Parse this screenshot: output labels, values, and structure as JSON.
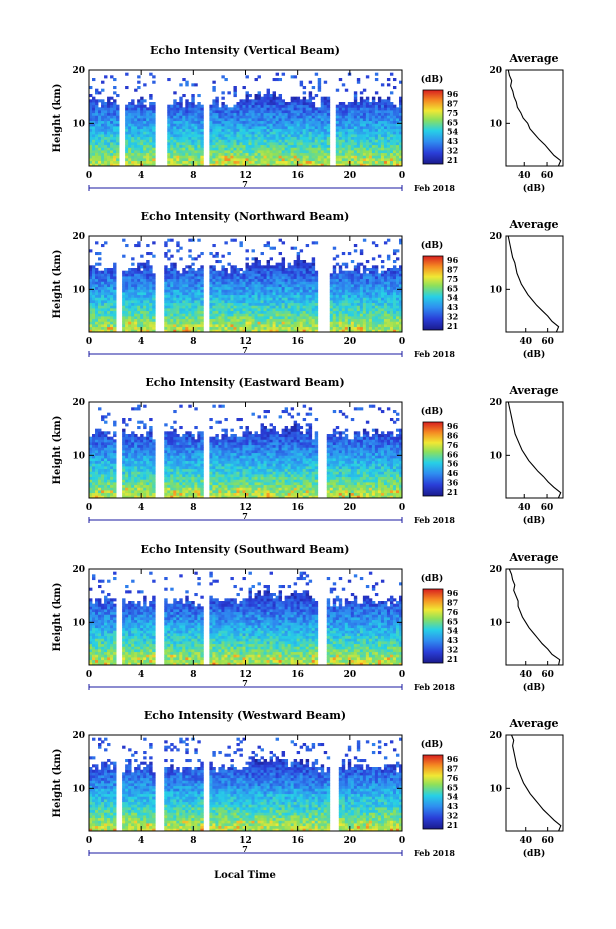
{
  "figure": {
    "xlabel": "Local Time",
    "date_label": "Feb 2018",
    "day_marker": "7",
    "colorbar_unit": "(dB)",
    "avg_title": "Average",
    "avg_xlabel": "(dB)",
    "ylabel": "Height (km)"
  },
  "chart_data": [
    {
      "type": "heatmap",
      "title": "Echo Intensity (Vertical Beam)",
      "x_ticks": [
        "0",
        "4",
        "8",
        "12",
        "16",
        "20",
        "0"
      ],
      "xlim": [
        0,
        24
      ],
      "y_ticks": [
        "20",
        "10"
      ],
      "ylim": [
        2,
        20
      ],
      "gaps_hours": [
        [
          2.3,
          2.7
        ],
        [
          5.1,
          6.0
        ],
        [
          8.8,
          9.2
        ],
        [
          18.5,
          19.0
        ]
      ],
      "colorbar_ticks": [
        "96",
        "87",
        "75",
        "65",
        "54",
        "43",
        "32",
        "21"
      ],
      "colorbar_range": [
        21,
        96
      ],
      "average": {
        "x_ticks": [
          "40",
          "60"
        ],
        "xlim": [
          24,
          74
        ],
        "y_ticks": [
          "20",
          "10"
        ],
        "height_km": [
          2,
          3,
          4,
          5,
          6,
          7,
          8,
          9,
          10,
          11,
          12,
          13,
          14,
          15,
          16,
          17,
          18,
          19,
          20
        ],
        "db": [
          70,
          72,
          66,
          62,
          58,
          53,
          49,
          45,
          43,
          39,
          37,
          34,
          33,
          31,
          30,
          28,
          29,
          27,
          26
        ]
      }
    },
    {
      "type": "heatmap",
      "title": "Echo Intensity (Northward Beam)",
      "x_ticks": [
        "0",
        "4",
        "8",
        "12",
        "16",
        "20",
        "0"
      ],
      "xlim": [
        0,
        24
      ],
      "y_ticks": [
        "20",
        "10"
      ],
      "ylim": [
        2,
        20
      ],
      "gaps_hours": [
        [
          2.0,
          2.5
        ],
        [
          5.0,
          5.8
        ],
        [
          8.8,
          9.3
        ],
        [
          17.6,
          18.4
        ]
      ],
      "colorbar_ticks": [
        "96",
        "87",
        "75",
        "65",
        "54",
        "43",
        "32",
        "21"
      ],
      "colorbar_range": [
        21,
        96
      ],
      "average": {
        "x_ticks": [
          "40",
          "60"
        ],
        "xlim": [
          22,
          74
        ],
        "y_ticks": [
          "20",
          "10"
        ],
        "height_km": [
          2,
          3,
          4,
          5,
          6,
          7,
          8,
          9,
          10,
          11,
          12,
          13,
          14,
          15,
          16,
          17,
          18,
          19,
          20
        ],
        "db": [
          68,
          70,
          64,
          60,
          55,
          50,
          46,
          42,
          39,
          36,
          34,
          32,
          31,
          30,
          28,
          27,
          26,
          25,
          24
        ]
      }
    },
    {
      "type": "heatmap",
      "title": "Echo Intensity (Eastward Beam)",
      "x_ticks": [
        "0",
        "4",
        "8",
        "12",
        "16",
        "20",
        "0"
      ],
      "xlim": [
        0,
        24
      ],
      "y_ticks": [
        "20",
        "10"
      ],
      "ylim": [
        2,
        20
      ],
      "gaps_hours": [
        [
          2.0,
          2.5
        ],
        [
          5.1,
          5.8
        ],
        [
          8.8,
          9.3
        ],
        [
          17.5,
          18.3
        ]
      ],
      "colorbar_ticks": [
        "96",
        "86",
        "76",
        "66",
        "56",
        "46",
        "36",
        "21"
      ],
      "colorbar_range": [
        21,
        96
      ],
      "average": {
        "x_ticks": [
          "40",
          "60"
        ],
        "xlim": [
          24,
          74
        ],
        "y_ticks": [
          "20",
          "10"
        ],
        "height_km": [
          2,
          3,
          4,
          5,
          6,
          7,
          8,
          9,
          10,
          11,
          12,
          13,
          14,
          15,
          16,
          17,
          18,
          19,
          20
        ],
        "db": [
          70,
          72,
          66,
          61,
          57,
          52,
          48,
          44,
          41,
          38,
          36,
          34,
          32,
          31,
          30,
          29,
          28,
          27,
          26
        ]
      }
    },
    {
      "type": "heatmap",
      "title": "Echo Intensity (Southward Beam)",
      "x_ticks": [
        "0",
        "4",
        "8",
        "12",
        "16",
        "20",
        "0"
      ],
      "xlim": [
        0,
        24
      ],
      "y_ticks": [
        "20",
        "10"
      ],
      "ylim": [
        2,
        20
      ],
      "gaps_hours": [
        [
          2.1,
          2.5
        ],
        [
          5.0,
          5.8
        ],
        [
          8.8,
          9.3
        ],
        [
          17.5,
          18.3
        ]
      ],
      "colorbar_ticks": [
        "96",
        "87",
        "76",
        "65",
        "54",
        "43",
        "32",
        "21"
      ],
      "colorbar_range": [
        21,
        96
      ],
      "average": {
        "x_ticks": [
          "40",
          "60"
        ],
        "xlim": [
          22,
          74
        ],
        "y_ticks": [
          "20",
          "10"
        ],
        "height_km": [
          2,
          3,
          4,
          5,
          6,
          7,
          8,
          9,
          10,
          11,
          12,
          13,
          14,
          15,
          16,
          17,
          18,
          19,
          20
        ],
        "db": [
          70,
          71,
          64,
          60,
          55,
          51,
          47,
          43,
          40,
          37,
          35,
          33,
          33,
          31,
          29,
          30,
          28,
          27,
          25
        ]
      }
    },
    {
      "type": "heatmap",
      "title": "Echo Intensity (Westward Beam)",
      "x_ticks": [
        "0",
        "4",
        "8",
        "12",
        "16",
        "20",
        "0"
      ],
      "xlim": [
        0,
        24
      ],
      "y_ticks": [
        "20",
        "10"
      ],
      "ylim": [
        2,
        20
      ],
      "gaps_hours": [
        [
          2.0,
          2.5
        ],
        [
          5.0,
          5.8
        ],
        [
          8.8,
          9.3
        ],
        [
          18.5,
          19.1
        ]
      ],
      "colorbar_ticks": [
        "96",
        "87",
        "76",
        "65",
        "54",
        "43",
        "32",
        "21"
      ],
      "colorbar_range": [
        21,
        96
      ],
      "average": {
        "x_ticks": [
          "40",
          "60"
        ],
        "xlim": [
          22,
          74
        ],
        "y_ticks": [
          "20",
          "10"
        ],
        "height_km": [
          2,
          3,
          4,
          5,
          6,
          7,
          8,
          9,
          10,
          11,
          12,
          13,
          14,
          15,
          16,
          17,
          18,
          19,
          20
        ],
        "db": [
          70,
          72,
          66,
          61,
          56,
          52,
          48,
          44,
          41,
          38,
          36,
          34,
          32,
          31,
          30,
          29,
          28,
          29,
          27
        ]
      }
    }
  ]
}
